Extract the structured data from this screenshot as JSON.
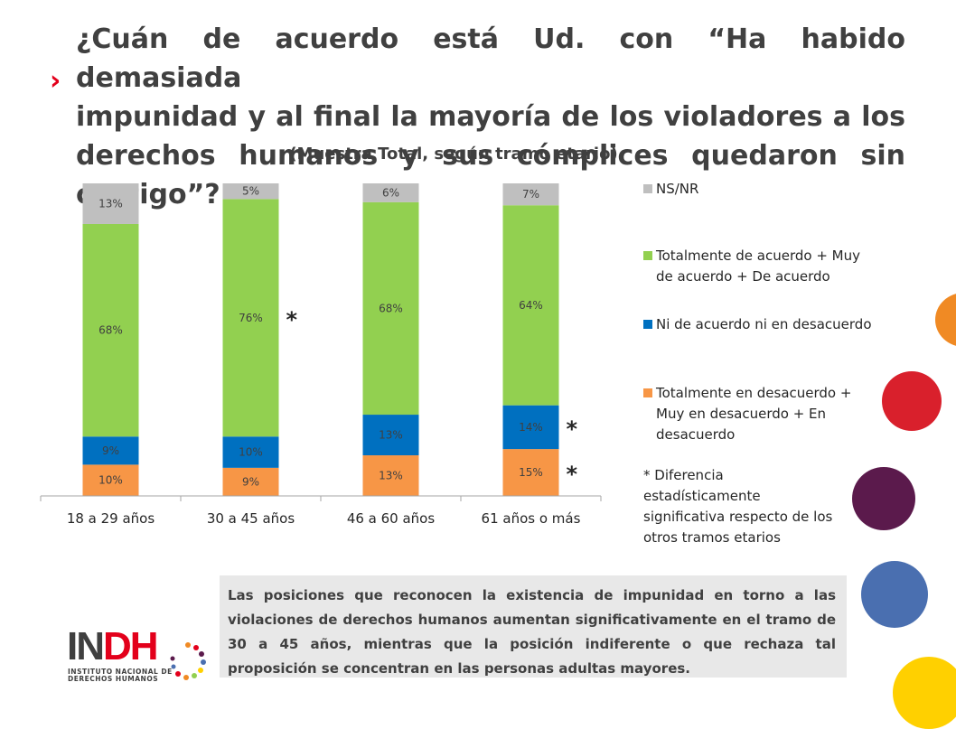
{
  "title": {
    "lines": [
      "¿Cuán de acuerdo está Ud. con “Ha habido demasiada",
      "impunidad y al final la mayoría de los violadores a los",
      "derechos humanos y sus cómplices quedaron sin castigo”?"
    ],
    "bullet": "›"
  },
  "chart_data": {
    "type": "bar",
    "stacked": true,
    "subtitle": "(Muestra Total, según tramo etario)",
    "categories": [
      "18 a 29 años",
      "30 a 45 años",
      "46 a 60 años",
      "61 años o más"
    ],
    "series": [
      {
        "name": "Totalmente en desacuerdo + Muy en desacuerdo + En desacuerdo",
        "color": "#f79646",
        "values": [
          10,
          9,
          13,
          15
        ],
        "labels": [
          "10%",
          "9%",
          "13%",
          "15%"
        ]
      },
      {
        "name": "Ni de acuerdo ni en desacuerdo",
        "color": "#0070c0",
        "values": [
          9,
          10,
          13,
          14
        ],
        "labels": [
          "9%",
          "10%",
          "13%",
          "14%"
        ]
      },
      {
        "name": "Totalmente de acuerdo + Muy de acuerdo + De acuerdo",
        "color": "#92d050",
        "values": [
          68,
          76,
          68,
          64
        ],
        "labels": [
          "68%",
          "76%",
          "68%",
          "64%"
        ]
      },
      {
        "name": "NS/NR",
        "color": "#bfbfbf",
        "values": [
          13,
          5,
          6,
          7
        ],
        "labels": [
          "13%",
          "5%",
          "6%",
          "7%"
        ]
      }
    ],
    "ylim": [
      0,
      100
    ],
    "grid": false,
    "legend": "right",
    "significance_marker": "*",
    "significance_marks": [
      {
        "category": "30 a 45 años",
        "series": "Totalmente de acuerdo + Muy de acuerdo + De acuerdo"
      },
      {
        "category": "61 años o más",
        "series": "Ni de acuerdo ni en desacuerdo"
      },
      {
        "category": "61 años o más",
        "series": "Totalmente en desacuerdo + Muy en desacuerdo + En desacuerdo"
      }
    ]
  },
  "legend": {
    "items": [
      {
        "lines": [
          "NS/NR"
        ],
        "color": "#bfbfbf"
      },
      {
        "lines": [
          "Totalmente de acuerdo + Muy",
          "de acuerdo + De acuerdo"
        ],
        "color": "#92d050"
      },
      {
        "lines": [
          "Ni de acuerdo ni en desacuerdo"
        ],
        "color": "#0070c0"
      },
      {
        "lines": [
          "Totalmente en desacuerdo +",
          "Muy en desacuerdo + En",
          "desacuerdo"
        ],
        "color": "#f79646"
      }
    ]
  },
  "note": {
    "lines": [
      "* Diferencia",
      "estadísticamente",
      "significativa respecto de los",
      "otros tramos etarios"
    ]
  },
  "summary": {
    "text": "Las posiciones que reconocen la existencia de impunidad en torno a las violaciones de derechos humanos aumentan significativamente en el tramo de 30 a 45 años, mientras que la posición indiferente o que rechaza tal proposición se concentran en las personas adultas mayores."
  },
  "logo": {
    "word_a": "IN",
    "word_b": "DH",
    "sub_1": "INSTITUTO NACIONAL DE",
    "sub_2": "DERECHOS HUMANOS"
  },
  "decor_colors": [
    "#f08a24",
    "#d9202c",
    "#5b1a4c",
    "#4a6fb0",
    "#ffd000"
  ]
}
